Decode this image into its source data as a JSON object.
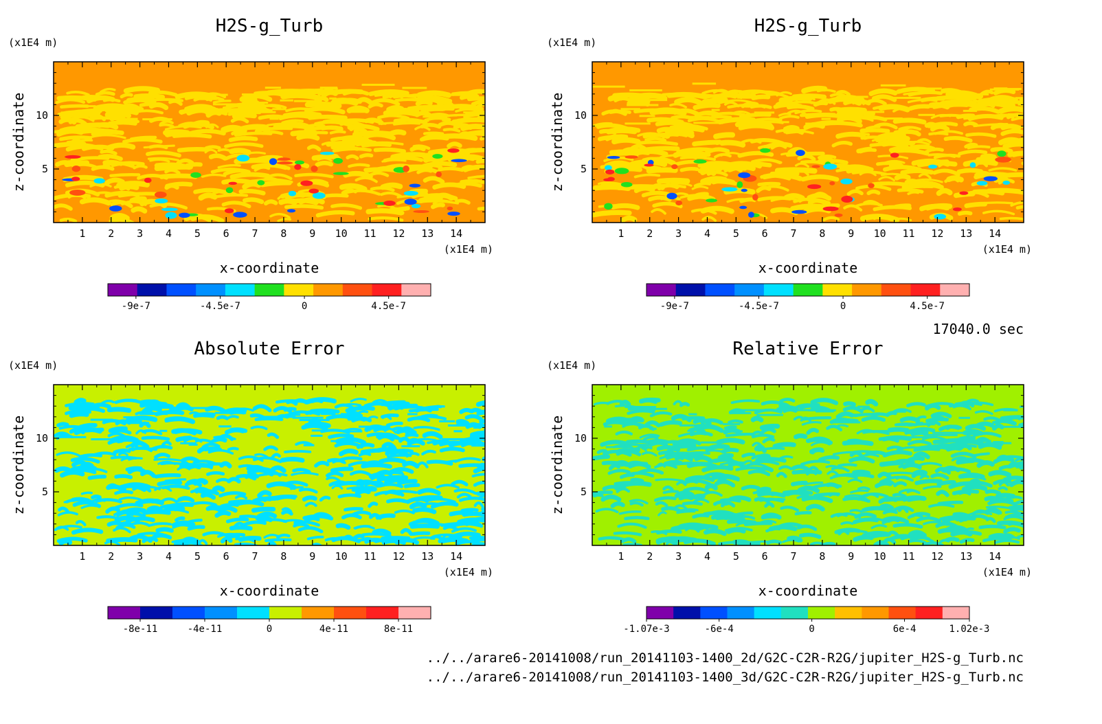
{
  "figure": {
    "time_label": "17040.0 sec",
    "footer_paths": [
      "../../arare6-20141008/run_20141103-1400_2d/G2C-C2R-R2G/jupiter_H2S-g_Turb.nc",
      "../../arare6-20141008/run_20141103-1400_3d/G2C-C2R-R2G/jupiter_H2S-g_Turb.nc"
    ]
  },
  "chart_data": [
    {
      "type": "heatmap",
      "title": "H2S-g_Turb",
      "xlabel": "x-coordinate",
      "ylabel": "z-coordinate",
      "x_unit": "(x1E4 m)",
      "y_unit": "(x1E4 m)",
      "xlim": [
        0,
        15
      ],
      "ylim": [
        0,
        15
      ],
      "xticks": [
        1,
        2,
        3,
        4,
        5,
        6,
        7,
        8,
        9,
        10,
        11,
        12,
        13,
        14
      ],
      "yticks": [
        5,
        10
      ],
      "colorbar": {
        "colors": [
          "#7f00aa",
          "#0010aa",
          "#0050ff",
          "#0090ff",
          "#00e0ff",
          "#20e020",
          "#ffe000",
          "#ff9800",
          "#ff5010",
          "#ff2020",
          "#ffb0b0"
        ],
        "tick_labels": [
          "-9e-7",
          "-4.5e-7",
          "0",
          "4.5e-7"
        ],
        "tick_values": [
          -9e-07,
          -4.5e-07,
          0,
          4.5e-07
        ],
        "range": [
          -1.05e-06,
          6.75e-07
        ]
      },
      "field": {
        "background": "#ff9800",
        "pattern": "#ffe000",
        "anomalies": [
          "#20e020",
          "#ff5010",
          "#0050ff",
          "#00e0ff",
          "#ff2020"
        ]
      }
    },
    {
      "type": "heatmap",
      "title": "H2S-g_Turb",
      "xlabel": "x-coordinate",
      "ylabel": "z-coordinate",
      "x_unit": "(x1E4 m)",
      "y_unit": "(x1E4 m)",
      "xlim": [
        0,
        15
      ],
      "ylim": [
        0,
        15
      ],
      "xticks": [
        1,
        2,
        3,
        4,
        5,
        6,
        7,
        8,
        9,
        10,
        11,
        12,
        13,
        14
      ],
      "yticks": [
        5,
        10
      ],
      "colorbar": {
        "colors": [
          "#7f00aa",
          "#0010aa",
          "#0050ff",
          "#0090ff",
          "#00e0ff",
          "#20e020",
          "#ffe000",
          "#ff9800",
          "#ff5010",
          "#ff2020",
          "#ffb0b0"
        ],
        "tick_labels": [
          "-9e-7",
          "-4.5e-7",
          "0",
          "4.5e-7"
        ],
        "tick_values": [
          -9e-07,
          -4.5e-07,
          0,
          4.5e-07
        ],
        "range": [
          -1.05e-06,
          6.75e-07
        ]
      },
      "field": {
        "background": "#ff9800",
        "pattern": "#ffe000",
        "anomalies": [
          "#20e020",
          "#ff5010",
          "#0050ff",
          "#00e0ff",
          "#ff2020"
        ]
      }
    },
    {
      "type": "heatmap",
      "title": "Absolute Error",
      "xlabel": "x-coordinate",
      "ylabel": "z-coordinate",
      "x_unit": "(x1E4 m)",
      "y_unit": "(x1E4 m)",
      "xlim": [
        0,
        15
      ],
      "ylim": [
        0,
        15
      ],
      "xticks": [
        1,
        2,
        3,
        4,
        5,
        6,
        7,
        8,
        9,
        10,
        11,
        12,
        13,
        14
      ],
      "yticks": [
        5,
        10
      ],
      "colorbar": {
        "colors": [
          "#7f00aa",
          "#0010aa",
          "#0050ff",
          "#0090ff",
          "#00e0ff",
          "#c8f000",
          "#ff9800",
          "#ff5010",
          "#ff2020",
          "#ffb0b0"
        ],
        "tick_labels": [
          "-8e-11",
          "-4e-11",
          "0",
          "4e-11",
          "8e-11"
        ],
        "tick_values": [
          -8e-11,
          -4e-11,
          0,
          4e-11,
          8e-11
        ],
        "range": [
          -1e-10,
          1e-10
        ]
      },
      "field": {
        "background": "#c8f000",
        "pattern": "#00e0ff",
        "anomalies": []
      }
    },
    {
      "type": "heatmap",
      "title": "Relative Error",
      "xlabel": "x-coordinate",
      "ylabel": "z-coordinate",
      "x_unit": "(x1E4 m)",
      "y_unit": "(x1E4 m)",
      "xlim": [
        0,
        15
      ],
      "ylim": [
        0,
        15
      ],
      "xticks": [
        1,
        2,
        3,
        4,
        5,
        6,
        7,
        8,
        9,
        10,
        11,
        12,
        13,
        14
      ],
      "yticks": [
        5,
        10
      ],
      "colorbar": {
        "colors": [
          "#7f00aa",
          "#0010aa",
          "#0050ff",
          "#0090ff",
          "#00e0ff",
          "#20e0c0",
          "#a0f000",
          "#ffc000",
          "#ff9800",
          "#ff5010",
          "#ff2020",
          "#ffb0b0"
        ],
        "tick_labels": [
          "-1.07e-3",
          "-6e-4",
          "0",
          "6e-4",
          "1.02e-3"
        ],
        "tick_values": [
          -0.00107,
          -0.0006,
          0,
          0.0006,
          0.00102
        ],
        "range": [
          -0.00107,
          0.00102
        ]
      },
      "field": {
        "background": "#a0f000",
        "pattern": "#20e0c0",
        "anomalies": []
      }
    }
  ]
}
